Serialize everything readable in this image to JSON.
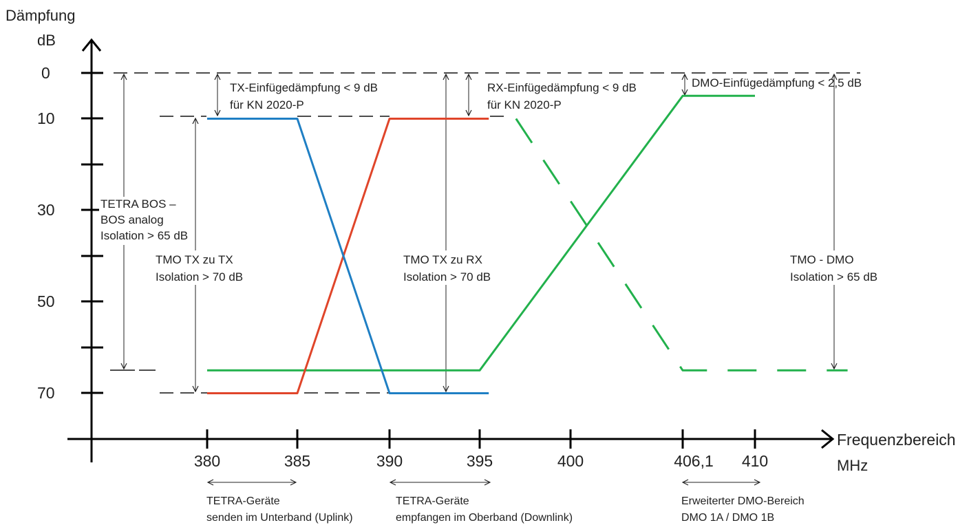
{
  "y_axis": {
    "title": "Dämpfung",
    "unit": "dB",
    "tick_labels": [
      "0",
      "10",
      "30",
      "50",
      "70"
    ]
  },
  "x_axis": {
    "title": "Frequenzbereich",
    "unit": "MHz",
    "tick_labels": [
      "380",
      "385",
      "390",
      "395",
      "400",
      "406,1",
      "410"
    ]
  },
  "annotations": {
    "tx_insertion": [
      "TX-Einfügedämpfung < 9 dB",
      "für KN 2020-P"
    ],
    "rx_insertion": [
      "RX-Einfügedämpfung < 9 dB",
      "für KN 2020-P"
    ],
    "dmo_insertion": "DMO-Einfügedämpfung < 2,5 dB",
    "tetra_bos": [
      "TETRA BOS –",
      "BOS analog",
      "Isolation > 65 dB"
    ],
    "tmo_tx_tx": [
      "TMO TX zu TX",
      "Isolation > 70 dB"
    ],
    "tmo_tx_rx": [
      "TMO TX zu RX",
      "Isolation > 70 dB"
    ],
    "tmo_dmo": [
      "TMO - DMO",
      "Isolation > 65 dB"
    ]
  },
  "bands": {
    "uplink": [
      "TETRA-Geräte",
      "senden im Unterband (Uplink)"
    ],
    "downlink": [
      "TETRA-Geräte",
      "empfangen im Oberband (Downlink)"
    ],
    "dmo": [
      "Erweiterter DMO-Bereich",
      "DMO 1A / DMO 1B"
    ]
  },
  "colors": {
    "tx_filter": "#1f7fc4",
    "rx_filter": "#e0452a",
    "dmo_filter": "#22b14c",
    "axis": "#000000",
    "guides": "#222222"
  },
  "curves": {
    "tx_filter_blue": [
      [
        380,
        10
      ],
      [
        385,
        10
      ],
      [
        390,
        70
      ],
      [
        395.5,
        70
      ]
    ],
    "rx_filter_red": [
      [
        380,
        70
      ],
      [
        385,
        70
      ],
      [
        390,
        10
      ],
      [
        395.5,
        10
      ]
    ],
    "dmo_filter_green_solid": [
      [
        380,
        65
      ],
      [
        395,
        65
      ],
      [
        406.1,
        5
      ],
      [
        410,
        5
      ]
    ],
    "dmo_filter_green_dashed": [
      [
        397,
        10
      ],
      [
        406.1,
        65
      ],
      [
        415,
        65
      ]
    ]
  }
}
